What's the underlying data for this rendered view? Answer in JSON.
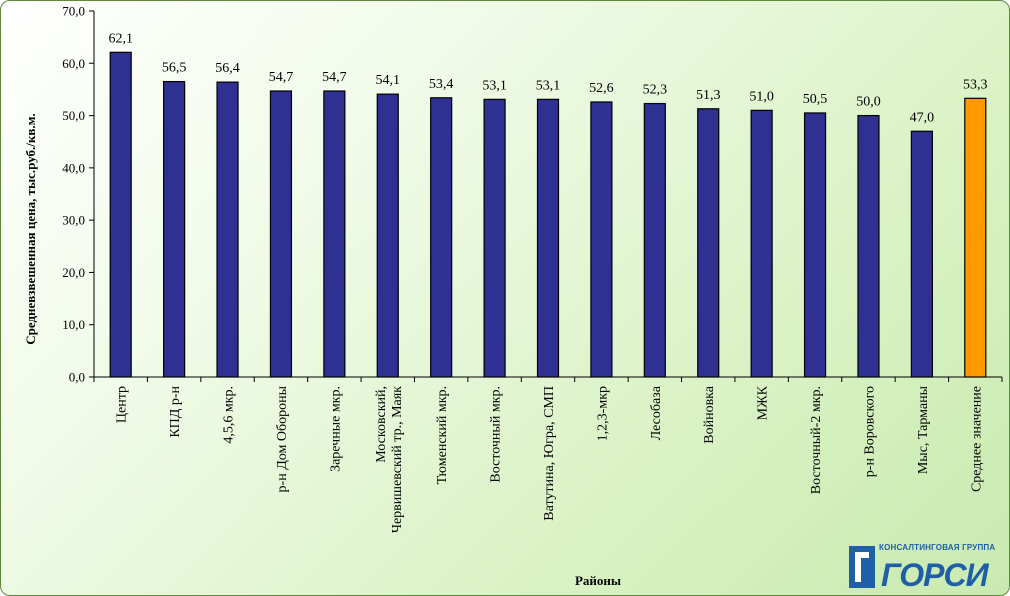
{
  "chart_data": {
    "type": "bar",
    "title": "",
    "xlabel": "Районы",
    "ylabel": "Средневзвешенная цена, тыс.руб./кв.м.",
    "ylim": [
      0,
      70
    ],
    "yticks": [
      "0,0",
      "10,0",
      "20,0",
      "30,0",
      "40,0",
      "50,0",
      "60,0",
      "70,0"
    ],
    "grid": false,
    "legend": "none",
    "categories": [
      "Центр",
      "КПД р-н",
      "4,5,6 мкр.",
      "р-н Дом Обороны",
      "Заречные мкр.",
      "Московский, Червишевский тр., Маяк",
      "Тюменский мкр.",
      "Восточный мкр.",
      "Ватутина,  Югра, СМП",
      "1,2,3-мкр",
      "Лесобаза",
      "Войновка",
      "МЖК",
      "Восточный-2 мкр.",
      "р-н Воровского",
      "Мыс, Тарманы",
      "Среднее значение"
    ],
    "values": [
      62.1,
      56.5,
      56.4,
      54.7,
      54.7,
      54.1,
      53.4,
      53.1,
      53.1,
      52.6,
      52.3,
      51.3,
      51.0,
      50.5,
      50.0,
      47.0,
      53.3
    ],
    "value_labels": [
      "62,1",
      "56,5",
      "56,4",
      "54,7",
      "54,7",
      "54,1",
      "53,4",
      "53,1",
      "53,1",
      "52,6",
      "52,3",
      "51,3",
      "51,0",
      "50,5",
      "50,0",
      "47,0",
      "53,3"
    ],
    "colors": {
      "bar": "#2e3192",
      "highlight": "#ff9900",
      "highlight_index": 16
    }
  },
  "logo": {
    "caption": "КОНСАЛТИНГОВАЯ ГРУППА",
    "text": "ГОРСИ",
    "color": "#1f5fa8",
    "icon": "gorsi-logo-icon"
  }
}
